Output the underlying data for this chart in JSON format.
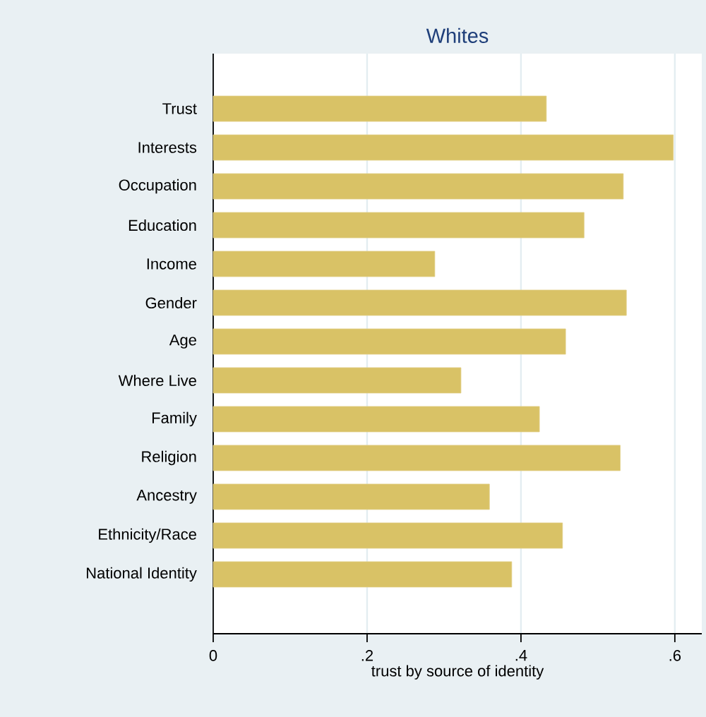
{
  "chart_data": {
    "type": "bar",
    "orientation": "horizontal",
    "title": "Whites",
    "xlabel": "trust by source of identity",
    "categories": [
      "Trust",
      "Interests",
      "Occupation",
      "Education",
      "Income",
      "Gender",
      "Age",
      "Where Live",
      "Family",
      "Religion",
      "Ancestry",
      "Ethnicity/Race",
      "National Identity"
    ],
    "values": [
      0.433,
      0.598,
      0.533,
      0.482,
      0.288,
      0.537,
      0.458,
      0.322,
      0.424,
      0.529,
      0.359,
      0.454,
      0.388
    ],
    "color": "#d9c266",
    "xlim": [
      0,
      0.635
    ],
    "xticks": [
      0,
      {
        "value": 0.2,
        "label": ".2"
      },
      {
        "value": 0.4,
        "label": ".4"
      },
      {
        "value": 0.6,
        "label": ".6"
      }
    ],
    "grid": "x"
  }
}
